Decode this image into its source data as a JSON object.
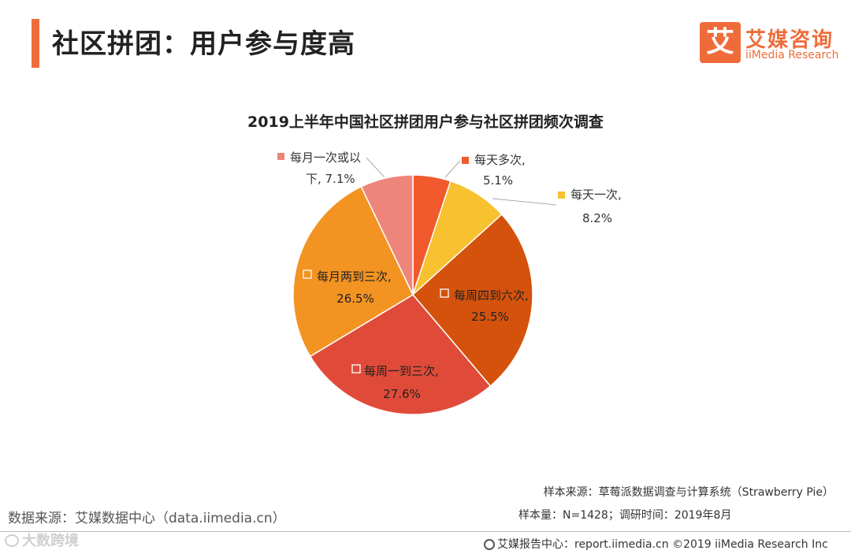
{
  "header": {
    "title": "社区拼团：用户参与度高",
    "logo_mark": "艾",
    "logo_cn": "艾媒咨询",
    "logo_en": "iiMedia Research",
    "accent_color": "#ef6c3a"
  },
  "chart_data": {
    "type": "pie",
    "title": "2019上半年中国社区拼团用户参与社区拼团频次调查",
    "unit": "%",
    "slices": [
      {
        "label": "每天多次,",
        "value": 5.1,
        "color": "#f15a2c"
      },
      {
        "label": "每天一次,",
        "value": 8.2,
        "color": "#f7c12f"
      },
      {
        "label": "每周四到六次,",
        "value": 25.5,
        "color": "#d4520c"
      },
      {
        "label": "每周一到三次,",
        "value": 27.6,
        "color": "#e04b39"
      },
      {
        "label": "每月两到三次,",
        "value": 26.5,
        "color": "#f39322"
      },
      {
        "label": "每月一次或以下,",
        "value": 7.1,
        "color": "#ee857b"
      }
    ]
  },
  "sources": {
    "left": "数据来源：艾媒数据中心（data.iimedia.cn）",
    "sample_source": "样本来源：草莓派数据调查与计算系统（Strawberry Pie）",
    "sample_info": "样本量：N=1428；调研时间：2019年8月"
  },
  "footer": {
    "text": "艾媒报告中心：report.iimedia.cn  ©2019  iiMedia Research Inc",
    "watermark": "大数跨境"
  }
}
